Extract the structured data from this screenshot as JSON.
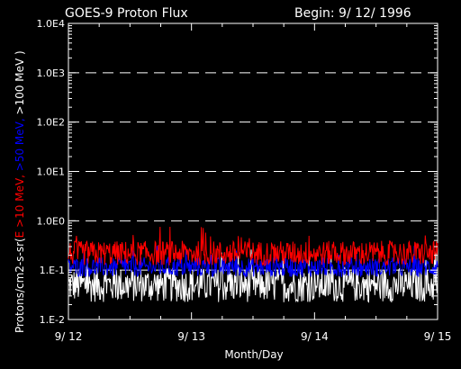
{
  "chart_data": {
    "type": "line",
    "title": "GOES-9 Proton Flux",
    "subtitle": "Begin: 9/ 12/ 1996",
    "xlabel": "Month/Day",
    "ylabel": {
      "prefix": "Protons/cm2-s-sr(",
      "red": "E >10 MeV,",
      "blue": " >50 MeV,",
      "white": " >100 MeV )"
    },
    "x_ticks": [
      "9/ 12",
      "9/ 13",
      "9/ 14",
      "9/ 15"
    ],
    "y_ticks": [
      "1.E-2",
      "1.E-1",
      "1.0E0",
      "1.0E1",
      "1.0E2",
      "1.0E3",
      "1.0E4"
    ],
    "y_scale": "log",
    "ylim": [
      0.01,
      10000
    ],
    "xlim_days": [
      0,
      3
    ],
    "grid": "dashed horizontal at decades",
    "series": [
      {
        "name": "E >10 MeV",
        "color": "#ff0000",
        "baseline": 0.22,
        "noise": 0.25
      },
      {
        "name": ">50 MeV",
        "color": "#0000ff",
        "baseline": 0.115,
        "noise": 0.2
      },
      {
        "name": ">100 MeV",
        "color": "#ffffff",
        "baseline": 0.05,
        "noise": 0.35
      }
    ]
  }
}
